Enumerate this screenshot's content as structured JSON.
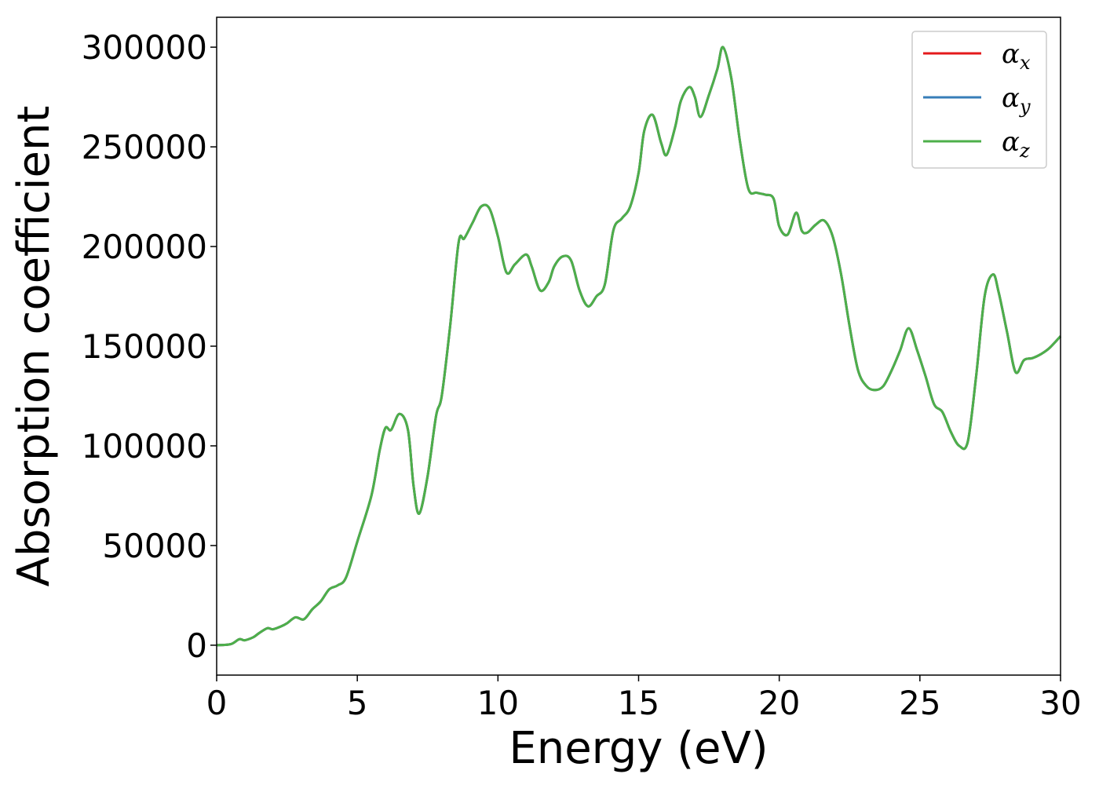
{
  "chart_data": {
    "type": "line",
    "title": "",
    "xlabel": "Energy (eV)",
    "ylabel": "Absorption coefficient",
    "xlim": [
      0,
      30
    ],
    "ylim": [
      -15000,
      315000
    ],
    "xticks": [
      0,
      5,
      10,
      15,
      20,
      25,
      30
    ],
    "yticks": [
      0,
      50000,
      100000,
      150000,
      200000,
      250000,
      300000
    ],
    "grid": false,
    "legend_position": "top-right",
    "series": [
      {
        "name": "α_x",
        "symbol": "α",
        "subscript": "x",
        "color": "#e41a1c",
        "x": [
          0,
          0.5,
          0.8,
          1.0,
          1.3,
          1.5,
          1.8,
          2.0,
          2.3,
          2.5,
          2.8,
          3.1,
          3.4,
          3.7,
          4.0,
          4.3,
          4.6,
          5.0,
          5.5,
          5.8,
          6.0,
          6.2,
          6.5,
          6.8,
          7.0,
          7.2,
          7.5,
          7.8,
          8.0,
          8.3,
          8.6,
          8.8,
          9.1,
          9.4,
          9.7,
          10.0,
          10.3,
          10.6,
          11.0,
          11.2,
          11.5,
          11.8,
          12.0,
          12.3,
          12.6,
          12.9,
          13.2,
          13.5,
          13.8,
          14.1,
          14.4,
          14.7,
          15.0,
          15.2,
          15.5,
          15.8,
          16.0,
          16.3,
          16.5,
          16.8,
          17.0,
          17.2,
          17.5,
          17.8,
          18.0,
          18.3,
          18.6,
          18.9,
          19.2,
          19.5,
          19.8,
          20.0,
          20.3,
          20.6,
          20.8,
          21.0,
          21.3,
          21.6,
          21.9,
          22.2,
          22.5,
          22.8,
          23.1,
          23.4,
          23.7,
          24.0,
          24.3,
          24.6,
          24.9,
          25.2,
          25.5,
          25.8,
          26.1,
          26.4,
          26.7,
          27.0,
          27.3,
          27.6,
          27.8,
          28.1,
          28.4,
          28.7,
          29.0,
          29.3,
          29.6,
          30.0
        ],
        "y": [
          0,
          500,
          3000,
          2500,
          4000,
          6000,
          8500,
          8000,
          9500,
          11000,
          14000,
          13000,
          18000,
          22000,
          28000,
          30000,
          34000,
          52000,
          75000,
          98000,
          109000,
          108000,
          116000,
          108000,
          80000,
          66000,
          85000,
          115000,
          125000,
          160000,
          202000,
          204000,
          212000,
          220000,
          219000,
          205000,
          187000,
          191000,
          196000,
          190000,
          178000,
          182000,
          190000,
          195000,
          193000,
          178000,
          170000,
          175000,
          181000,
          208000,
          214000,
          220000,
          237000,
          258000,
          266000,
          252000,
          246000,
          260000,
          273000,
          280000,
          275000,
          265000,
          276000,
          289000,
          300000,
          284000,
          253000,
          229000,
          227000,
          226000,
          224000,
          210000,
          206000,
          217000,
          208000,
          207000,
          211000,
          213000,
          205000,
          186000,
          160000,
          138000,
          130000,
          128000,
          130000,
          138000,
          148000,
          159000,
          148000,
          135000,
          121000,
          117000,
          107000,
          100000,
          102000,
          135000,
          175000,
          186000,
          177000,
          157000,
          137000,
          143000,
          144000,
          146000,
          149000,
          155000
        ]
      },
      {
        "name": "α_y",
        "symbol": "α",
        "subscript": "y",
        "color": "#377eb8",
        "x": [
          0,
          0.5,
          0.8,
          1.0,
          1.3,
          1.5,
          1.8,
          2.0,
          2.3,
          2.5,
          2.8,
          3.1,
          3.4,
          3.7,
          4.0,
          4.3,
          4.6,
          5.0,
          5.5,
          5.8,
          6.0,
          6.2,
          6.5,
          6.8,
          7.0,
          7.2,
          7.5,
          7.8,
          8.0,
          8.3,
          8.6,
          8.8,
          9.1,
          9.4,
          9.7,
          10.0,
          10.3,
          10.6,
          11.0,
          11.2,
          11.5,
          11.8,
          12.0,
          12.3,
          12.6,
          12.9,
          13.2,
          13.5,
          13.8,
          14.1,
          14.4,
          14.7,
          15.0,
          15.2,
          15.5,
          15.8,
          16.0,
          16.3,
          16.5,
          16.8,
          17.0,
          17.2,
          17.5,
          17.8,
          18.0,
          18.3,
          18.6,
          18.9,
          19.2,
          19.5,
          19.8,
          20.0,
          20.3,
          20.6,
          20.8,
          21.0,
          21.3,
          21.6,
          21.9,
          22.2,
          22.5,
          22.8,
          23.1,
          23.4,
          23.7,
          24.0,
          24.3,
          24.6,
          24.9,
          25.2,
          25.5,
          25.8,
          26.1,
          26.4,
          26.7,
          27.0,
          27.3,
          27.6,
          27.8,
          28.1,
          28.4,
          28.7,
          29.0,
          29.3,
          29.6,
          30.0
        ],
        "y": [
          0,
          500,
          3000,
          2500,
          4000,
          6000,
          8500,
          8000,
          9500,
          11000,
          14000,
          13000,
          18000,
          22000,
          28000,
          30000,
          34000,
          52000,
          75000,
          98000,
          109000,
          108000,
          116000,
          108000,
          80000,
          66000,
          85000,
          115000,
          125000,
          160000,
          202000,
          204000,
          212000,
          220000,
          219000,
          205000,
          187000,
          191000,
          196000,
          190000,
          178000,
          182000,
          190000,
          195000,
          193000,
          178000,
          170000,
          175000,
          181000,
          208000,
          214000,
          220000,
          237000,
          258000,
          266000,
          252000,
          246000,
          260000,
          273000,
          280000,
          275000,
          265000,
          276000,
          289000,
          300000,
          284000,
          253000,
          229000,
          227000,
          226000,
          224000,
          210000,
          206000,
          217000,
          208000,
          207000,
          211000,
          213000,
          205000,
          186000,
          160000,
          138000,
          130000,
          128000,
          130000,
          138000,
          148000,
          159000,
          148000,
          135000,
          121000,
          117000,
          107000,
          100000,
          102000,
          135000,
          175000,
          186000,
          177000,
          157000,
          137000,
          143000,
          144000,
          146000,
          149000,
          155000
        ]
      },
      {
        "name": "α_z",
        "symbol": "α",
        "subscript": "z",
        "color": "#4daf4a",
        "x": [
          0,
          0.5,
          0.8,
          1.0,
          1.3,
          1.5,
          1.8,
          2.0,
          2.3,
          2.5,
          2.8,
          3.1,
          3.4,
          3.7,
          4.0,
          4.3,
          4.6,
          5.0,
          5.5,
          5.8,
          6.0,
          6.2,
          6.5,
          6.8,
          7.0,
          7.2,
          7.5,
          7.8,
          8.0,
          8.3,
          8.6,
          8.8,
          9.1,
          9.4,
          9.7,
          10.0,
          10.3,
          10.6,
          11.0,
          11.2,
          11.5,
          11.8,
          12.0,
          12.3,
          12.6,
          12.9,
          13.2,
          13.5,
          13.8,
          14.1,
          14.4,
          14.7,
          15.0,
          15.2,
          15.5,
          15.8,
          16.0,
          16.3,
          16.5,
          16.8,
          17.0,
          17.2,
          17.5,
          17.8,
          18.0,
          18.3,
          18.6,
          18.9,
          19.2,
          19.5,
          19.8,
          20.0,
          20.3,
          20.6,
          20.8,
          21.0,
          21.3,
          21.6,
          21.9,
          22.2,
          22.5,
          22.8,
          23.1,
          23.4,
          23.7,
          24.0,
          24.3,
          24.6,
          24.9,
          25.2,
          25.5,
          25.8,
          26.1,
          26.4,
          26.7,
          27.0,
          27.3,
          27.6,
          27.8,
          28.1,
          28.4,
          28.7,
          29.0,
          29.3,
          29.6,
          30.0
        ],
        "y": [
          0,
          500,
          3000,
          2500,
          4000,
          6000,
          8500,
          8000,
          9500,
          11000,
          14000,
          13000,
          18000,
          22000,
          28000,
          30000,
          34000,
          52000,
          75000,
          98000,
          109000,
          108000,
          116000,
          108000,
          80000,
          66000,
          85000,
          115000,
          125000,
          160000,
          202000,
          204000,
          212000,
          220000,
          219000,
          205000,
          187000,
          191000,
          196000,
          190000,
          178000,
          182000,
          190000,
          195000,
          193000,
          178000,
          170000,
          175000,
          181000,
          208000,
          214000,
          220000,
          237000,
          258000,
          266000,
          252000,
          246000,
          260000,
          273000,
          280000,
          275000,
          265000,
          276000,
          289000,
          300000,
          284000,
          253000,
          229000,
          227000,
          226000,
          224000,
          210000,
          206000,
          217000,
          208000,
          207000,
          211000,
          213000,
          205000,
          186000,
          160000,
          138000,
          130000,
          128000,
          130000,
          138000,
          148000,
          159000,
          148000,
          135000,
          121000,
          117000,
          107000,
          100000,
          102000,
          135000,
          175000,
          186000,
          177000,
          157000,
          137000,
          143000,
          144000,
          146000,
          149000,
          155000
        ]
      }
    ]
  }
}
